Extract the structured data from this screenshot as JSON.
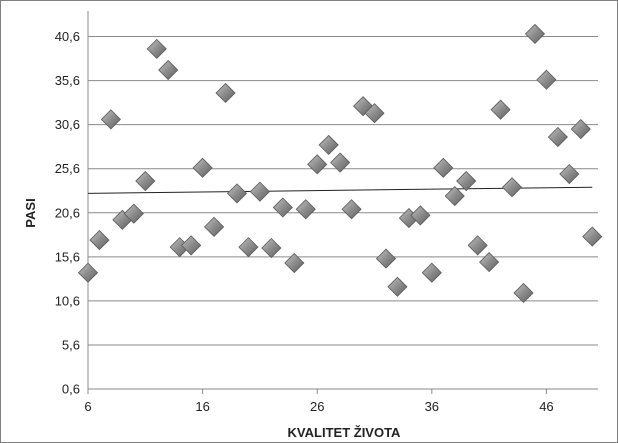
{
  "chart_data": {
    "type": "scatter",
    "xlabel": "KVALITET ŽIVOTA",
    "ylabel": "PASI",
    "xlim": [
      6,
      50.5
    ],
    "ylim": [
      0.6,
      43.5
    ],
    "x_ticks": [
      6,
      16,
      26,
      36,
      46
    ],
    "y_ticks": [
      0.6,
      5.6,
      10.6,
      15.6,
      20.6,
      25.6,
      30.6,
      35.6,
      40.6
    ],
    "x_tick_labels": [
      "6",
      "16",
      "26",
      "36",
      "46"
    ],
    "y_tick_labels": [
      "0,6",
      "5,6",
      "10,6",
      "15,6",
      "20,6",
      "25,6",
      "30,6",
      "35,6",
      "40,6"
    ],
    "grid": "horizontal",
    "legend": "none",
    "marker": "diamond",
    "marker_color": "#8c8c8c",
    "trendline": {
      "type": "linear",
      "x": [
        6,
        50
      ],
      "y": [
        22.8,
        23.5
      ]
    },
    "series": [
      {
        "x": [
          6,
          7,
          8,
          9,
          10,
          11,
          12,
          13,
          14,
          15,
          16,
          17,
          18,
          19,
          20,
          21,
          22,
          23,
          24,
          25,
          26,
          27,
          28,
          29,
          30,
          31,
          32,
          33,
          34,
          35,
          36,
          37,
          38,
          39,
          40,
          41,
          42,
          43,
          44,
          45,
          46,
          47,
          48,
          49,
          50
        ],
        "y": [
          13.8,
          17.5,
          31.2,
          19.8,
          20.5,
          24.2,
          39.2,
          36.8,
          16.7,
          16.9,
          25.7,
          19.0,
          34.2,
          22.8,
          16.7,
          23.0,
          16.6,
          21.2,
          14.9,
          21.0,
          26.1,
          28.3,
          26.3,
          21.0,
          32.7,
          31.9,
          15.4,
          12.2,
          20.0,
          20.3,
          13.8,
          25.7,
          22.5,
          24.2,
          16.9,
          15.0,
          32.3,
          23.5,
          11.5,
          40.9,
          35.7,
          29.2,
          25.0,
          30.1,
          17.9
        ]
      }
    ]
  }
}
